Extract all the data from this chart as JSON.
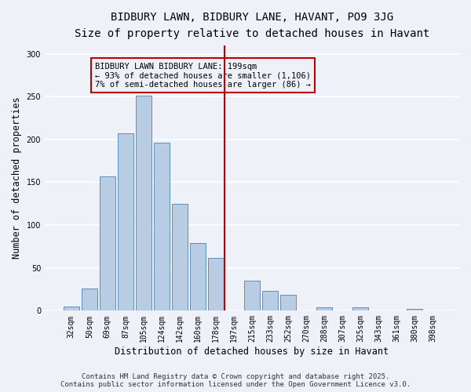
{
  "title": "BIDBURY LAWN, BIDBURY LANE, HAVANT, PO9 3JG",
  "subtitle": "Size of property relative to detached houses in Havant",
  "xlabel": "Distribution of detached houses by size in Havant",
  "ylabel": "Number of detached properties",
  "categories": [
    "32sqm",
    "50sqm",
    "69sqm",
    "87sqm",
    "105sqm",
    "124sqm",
    "142sqm",
    "160sqm",
    "178sqm",
    "197sqm",
    "215sqm",
    "233sqm",
    "252sqm",
    "270sqm",
    "288sqm",
    "307sqm",
    "325sqm",
    "343sqm",
    "361sqm",
    "380sqm",
    "398sqm"
  ],
  "values": [
    5,
    26,
    157,
    207,
    251,
    196,
    125,
    79,
    62,
    0,
    35,
    23,
    19,
    0,
    4,
    0,
    4,
    0,
    0,
    2,
    0
  ],
  "bar_color": "#b8cce4",
  "bar_edge_color": "#5a8fc3",
  "highlight_line_color": "#c00000",
  "annotation_line1": "BIDBURY LAWN BIDBURY LANE: 199sqm",
  "annotation_line2": "← 93% of detached houses are smaller (1,106)",
  "annotation_line3": "7% of semi-detached houses are larger (86) →",
  "annotation_box_color": "#c00000",
  "annotation_text_color": "#000000",
  "ylim": [
    0,
    310
  ],
  "yticks": [
    0,
    50,
    100,
    150,
    200,
    250,
    300
  ],
  "footer_line1": "Contains HM Land Registry data © Crown copyright and database right 2025.",
  "footer_line2": "Contains public sector information licensed under the Open Government Licence v3.0.",
  "bg_color": "#eef2f8",
  "grid_color": "#ffffff",
  "title_fontsize": 10,
  "subtitle_fontsize": 9,
  "axis_label_fontsize": 8.5,
  "tick_fontsize": 7,
  "annotation_fontsize": 7.5,
  "footer_fontsize": 6.5
}
